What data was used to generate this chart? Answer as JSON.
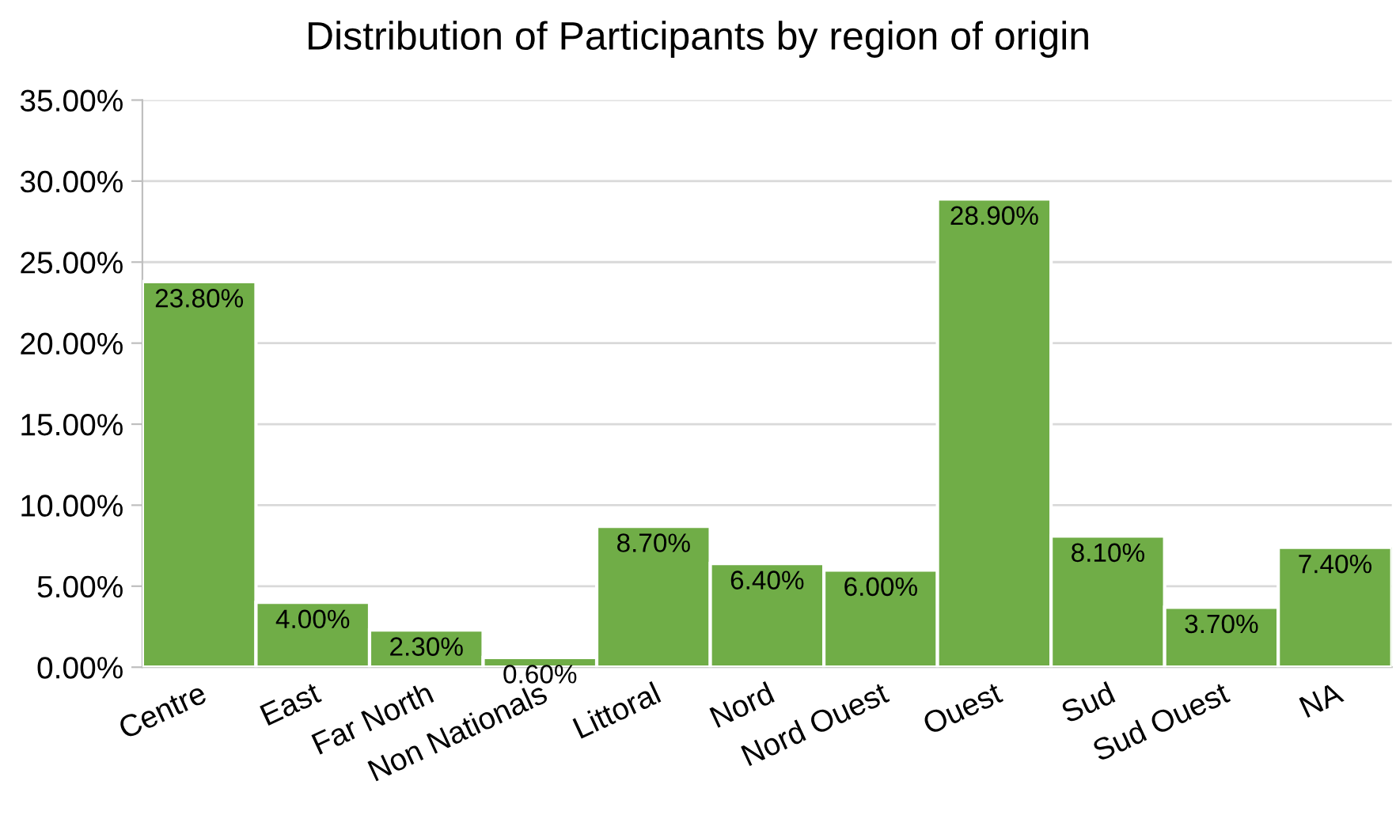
{
  "chart_data": {
    "type": "bar",
    "title": "Distribution of Participants by region of origin",
    "categories": [
      "Centre",
      "East",
      "Far North",
      "Non Nationals",
      "Littoral",
      "Nord",
      "Nord Ouest",
      "Ouest",
      "Sud",
      "Sud Ouest",
      "NA"
    ],
    "values": [
      23.8,
      4.0,
      2.3,
      0.6,
      8.7,
      6.4,
      6.0,
      28.9,
      8.1,
      3.7,
      7.4
    ],
    "value_labels": [
      "23.80%",
      "4.00%",
      "2.30%",
      "0.60%",
      "8.70%",
      "6.40%",
      "6.00%",
      "28.90%",
      "8.10%",
      "3.70%",
      "7.40%"
    ],
    "color": "#70ad47",
    "ylim": [
      0,
      35
    ],
    "yticks": [
      {
        "value": 0,
        "label": "0.00%"
      },
      {
        "value": 5,
        "label": "5.00%"
      },
      {
        "value": 10,
        "label": "10.00%"
      },
      {
        "value": 15,
        "label": "15.00%"
      },
      {
        "value": 20,
        "label": "20.00%"
      },
      {
        "value": 25,
        "label": "25.00%"
      },
      {
        "value": 30,
        "label": "30.00%"
      },
      {
        "value": 35,
        "label": "35.00%"
      }
    ],
    "grid": "y"
  }
}
